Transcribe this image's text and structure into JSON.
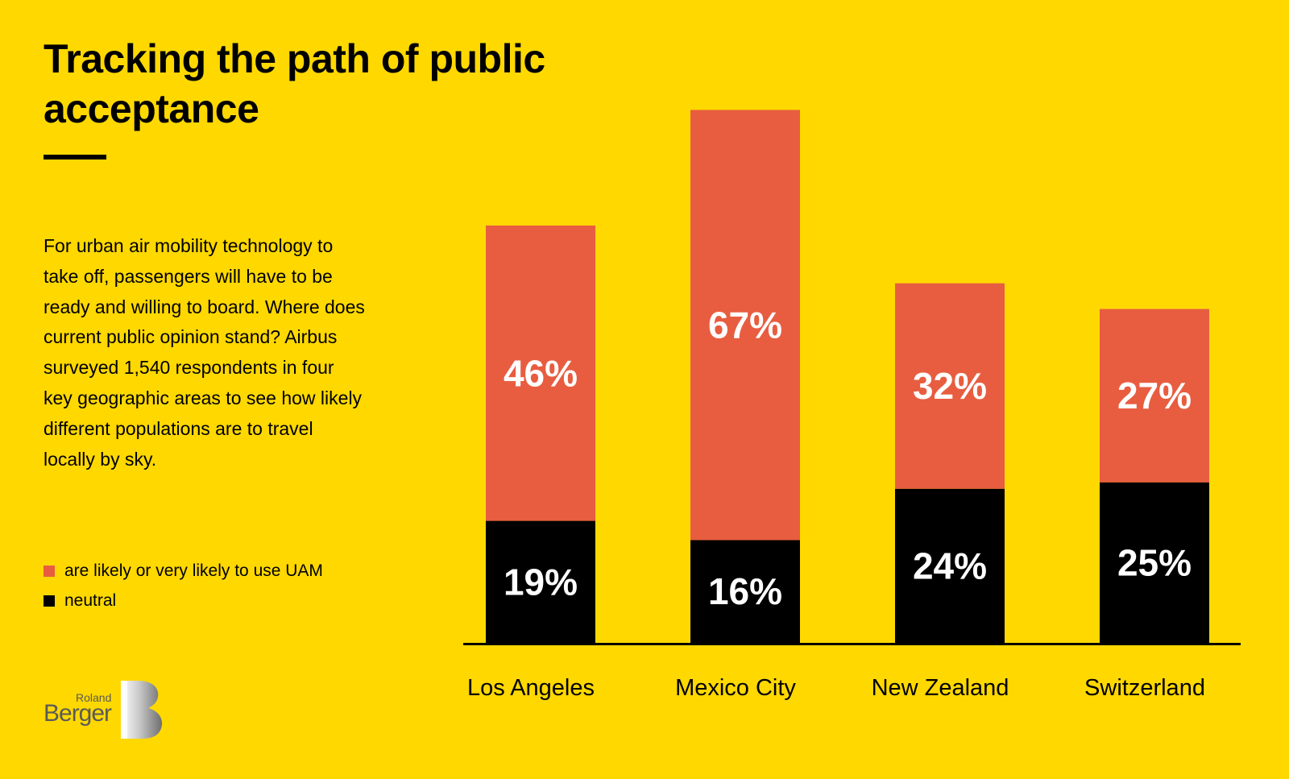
{
  "title": "Tracking the path of public acceptance",
  "description": "For urban air mobility technology to take off, passengers will have to be ready and willing to board. Where does current public opinion stand? Airbus surveyed 1,540 respondents in four key geographic areas to see how likely different populations are to travel locally by sky.",
  "legend": [
    {
      "label": "are likely or very likely to use UAM",
      "color": "#E85D40"
    },
    {
      "label": "neutral",
      "color": "#000000"
    }
  ],
  "logo": {
    "small": "Roland",
    "big": "Berger"
  },
  "colors": {
    "background": "#FFD800",
    "likely": "#E85D40",
    "neutral": "#000000"
  },
  "chart_data": {
    "type": "bar",
    "stacked": true,
    "categories": [
      "Los Angeles",
      "Mexico City",
      "New Zealand",
      "Switzerland"
    ],
    "series": [
      {
        "name": "neutral",
        "values": [
          19,
          16,
          24,
          25
        ],
        "labels": [
          "19%",
          "16%",
          "24%",
          "25%"
        ],
        "color": "#000000"
      },
      {
        "name": "are likely or very likely to use UAM",
        "values": [
          46,
          67,
          32,
          27
        ],
        "labels": [
          "46%",
          "67%",
          "32%",
          "27%"
        ],
        "color": "#E85D40"
      }
    ],
    "ylim": [
      0,
      83
    ],
    "grid": false,
    "legend_position": "left"
  }
}
